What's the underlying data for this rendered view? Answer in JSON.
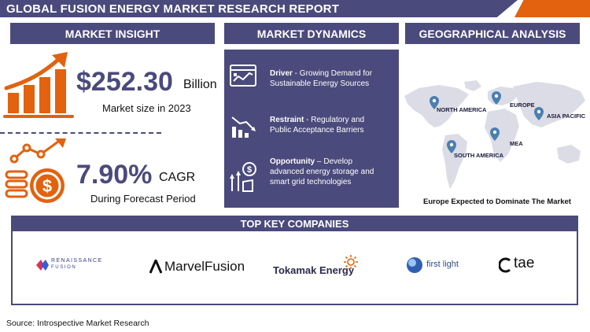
{
  "title": "GLOBAL FUSION ENERGY MARKET RESEARCH REPORT",
  "sections": {
    "insight": "MARKET INSIGHT",
    "dynamics": "MARKET DYNAMICS",
    "geo": "GEOGRAPHICAL ANALYSIS"
  },
  "insight": {
    "market_size_value": "$252.30",
    "market_size_unit": "Billion",
    "market_size_caption": "Market size in 2023",
    "cagr_value": "7.90%",
    "cagr_unit": "CAGR",
    "cagr_caption": "During Forecast Period"
  },
  "dynamics": [
    {
      "label": "Driver",
      "sep": " - ",
      "text": "Growing Demand for Sustainable Energy Sources"
    },
    {
      "label": "Restraint",
      "sep": " - ",
      "text": "Regulatory and Public Acceptance Barriers"
    },
    {
      "label": "Opportunity",
      "sep": " – ",
      "text": "Develop advanced energy storage and smart grid technologies"
    }
  ],
  "geo": {
    "regions": [
      "NORTH AMERICA",
      "EUROPE",
      "ASIA PACIFIC",
      "MEA",
      "SOUTH AMERICA"
    ],
    "caption": "Europe Expected to Dominate The Market"
  },
  "companies": {
    "title": "TOP KEY COMPANIES",
    "list": [
      {
        "line1": "RENAISSANCE",
        "line2": "FUSION"
      },
      {
        "line1": "MarvelFusion"
      },
      {
        "line1": "Tokamak Energy"
      },
      {
        "line1": "first light"
      },
      {
        "line1": "tae"
      }
    ]
  },
  "source": "Source: Introspective Market Research",
  "colors": {
    "primary": "#4a4a7c",
    "accent": "#e2620f"
  }
}
